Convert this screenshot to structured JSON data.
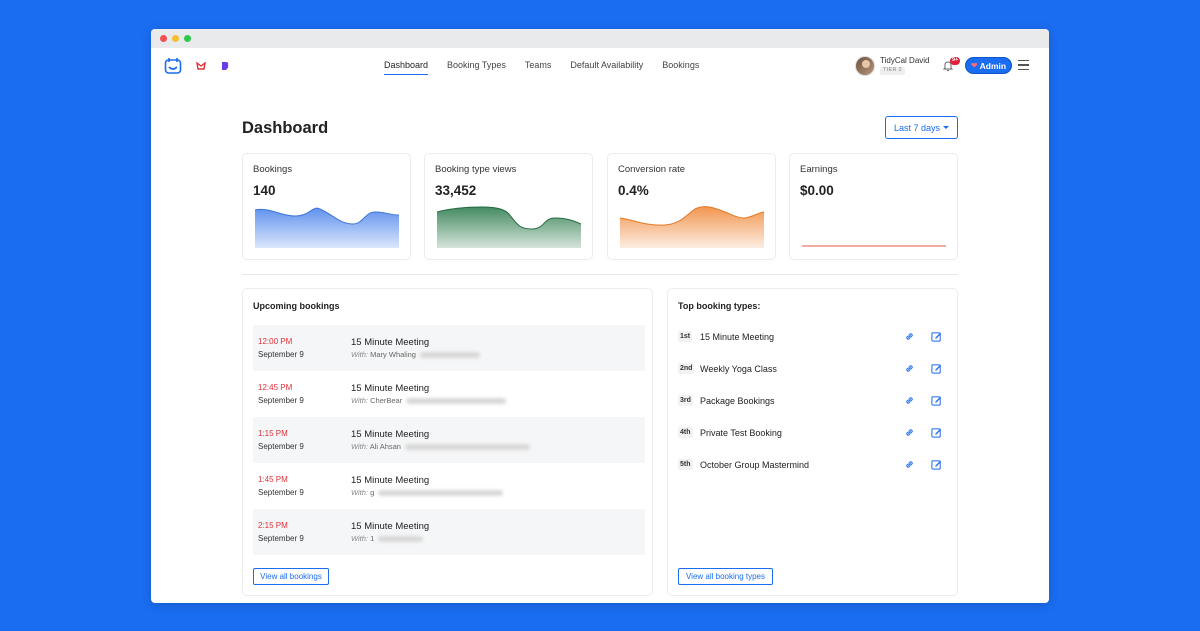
{
  "nav": {
    "items": [
      {
        "label": "Dashboard",
        "active": true
      },
      {
        "label": "Booking Types",
        "active": false
      },
      {
        "label": "Teams",
        "active": false
      },
      {
        "label": "Default Availability",
        "active": false
      },
      {
        "label": "Bookings",
        "active": false
      }
    ]
  },
  "user": {
    "name": "TidyCal David",
    "tier": "TIER 2",
    "notifications": "9+",
    "admin_label": "Admin"
  },
  "page": {
    "title": "Dashboard",
    "range_label": "Last 7 days"
  },
  "stats": [
    {
      "label": "Bookings",
      "value": "140",
      "color": "#4f86ec"
    },
    {
      "label": "Booking type views",
      "value": "33,452",
      "color": "#2f7d4f"
    },
    {
      "label": "Conversion rate",
      "value": "0.4%",
      "color": "#f08a3c"
    },
    {
      "label": "Earnings",
      "value": "$0.00",
      "color": "#e9574a"
    }
  ],
  "upcoming": {
    "title": "Upcoming bookings",
    "rows": [
      {
        "time": "12:00 PM",
        "date": "September 9",
        "title": "15 Minute Meeting",
        "with_label": "With:",
        "with_name": "Mary Whaling"
      },
      {
        "time": "12:45 PM",
        "date": "September 9",
        "title": "15 Minute Meeting",
        "with_label": "With:",
        "with_name": "CherBear"
      },
      {
        "time": "1:15 PM",
        "date": "September 9",
        "title": "15 Minute Meeting",
        "with_label": "With:",
        "with_name": "Ali Ahsan"
      },
      {
        "time": "1:45 PM",
        "date": "September 9",
        "title": "15 Minute Meeting",
        "with_label": "With:",
        "with_name": "g"
      },
      {
        "time": "2:15 PM",
        "date": "September 9",
        "title": "15 Minute Meeting",
        "with_label": "With:",
        "with_name": "1"
      }
    ],
    "view_all": "View all bookings"
  },
  "top_types": {
    "title": "Top booking types:",
    "rows": [
      {
        "rank": "1st",
        "name": "15 Minute Meeting"
      },
      {
        "rank": "2nd",
        "name": "Weekly Yoga Class"
      },
      {
        "rank": "3rd",
        "name": "Package Bookings"
      },
      {
        "rank": "4th",
        "name": "Private Test Booking"
      },
      {
        "rank": "5th",
        "name": "October Group Mastermind"
      }
    ],
    "view_all": "View all booking types"
  },
  "colors": {
    "accent": "#1a6cf0",
    "time_red": "#e0303a",
    "background": "#1a6cf0"
  }
}
